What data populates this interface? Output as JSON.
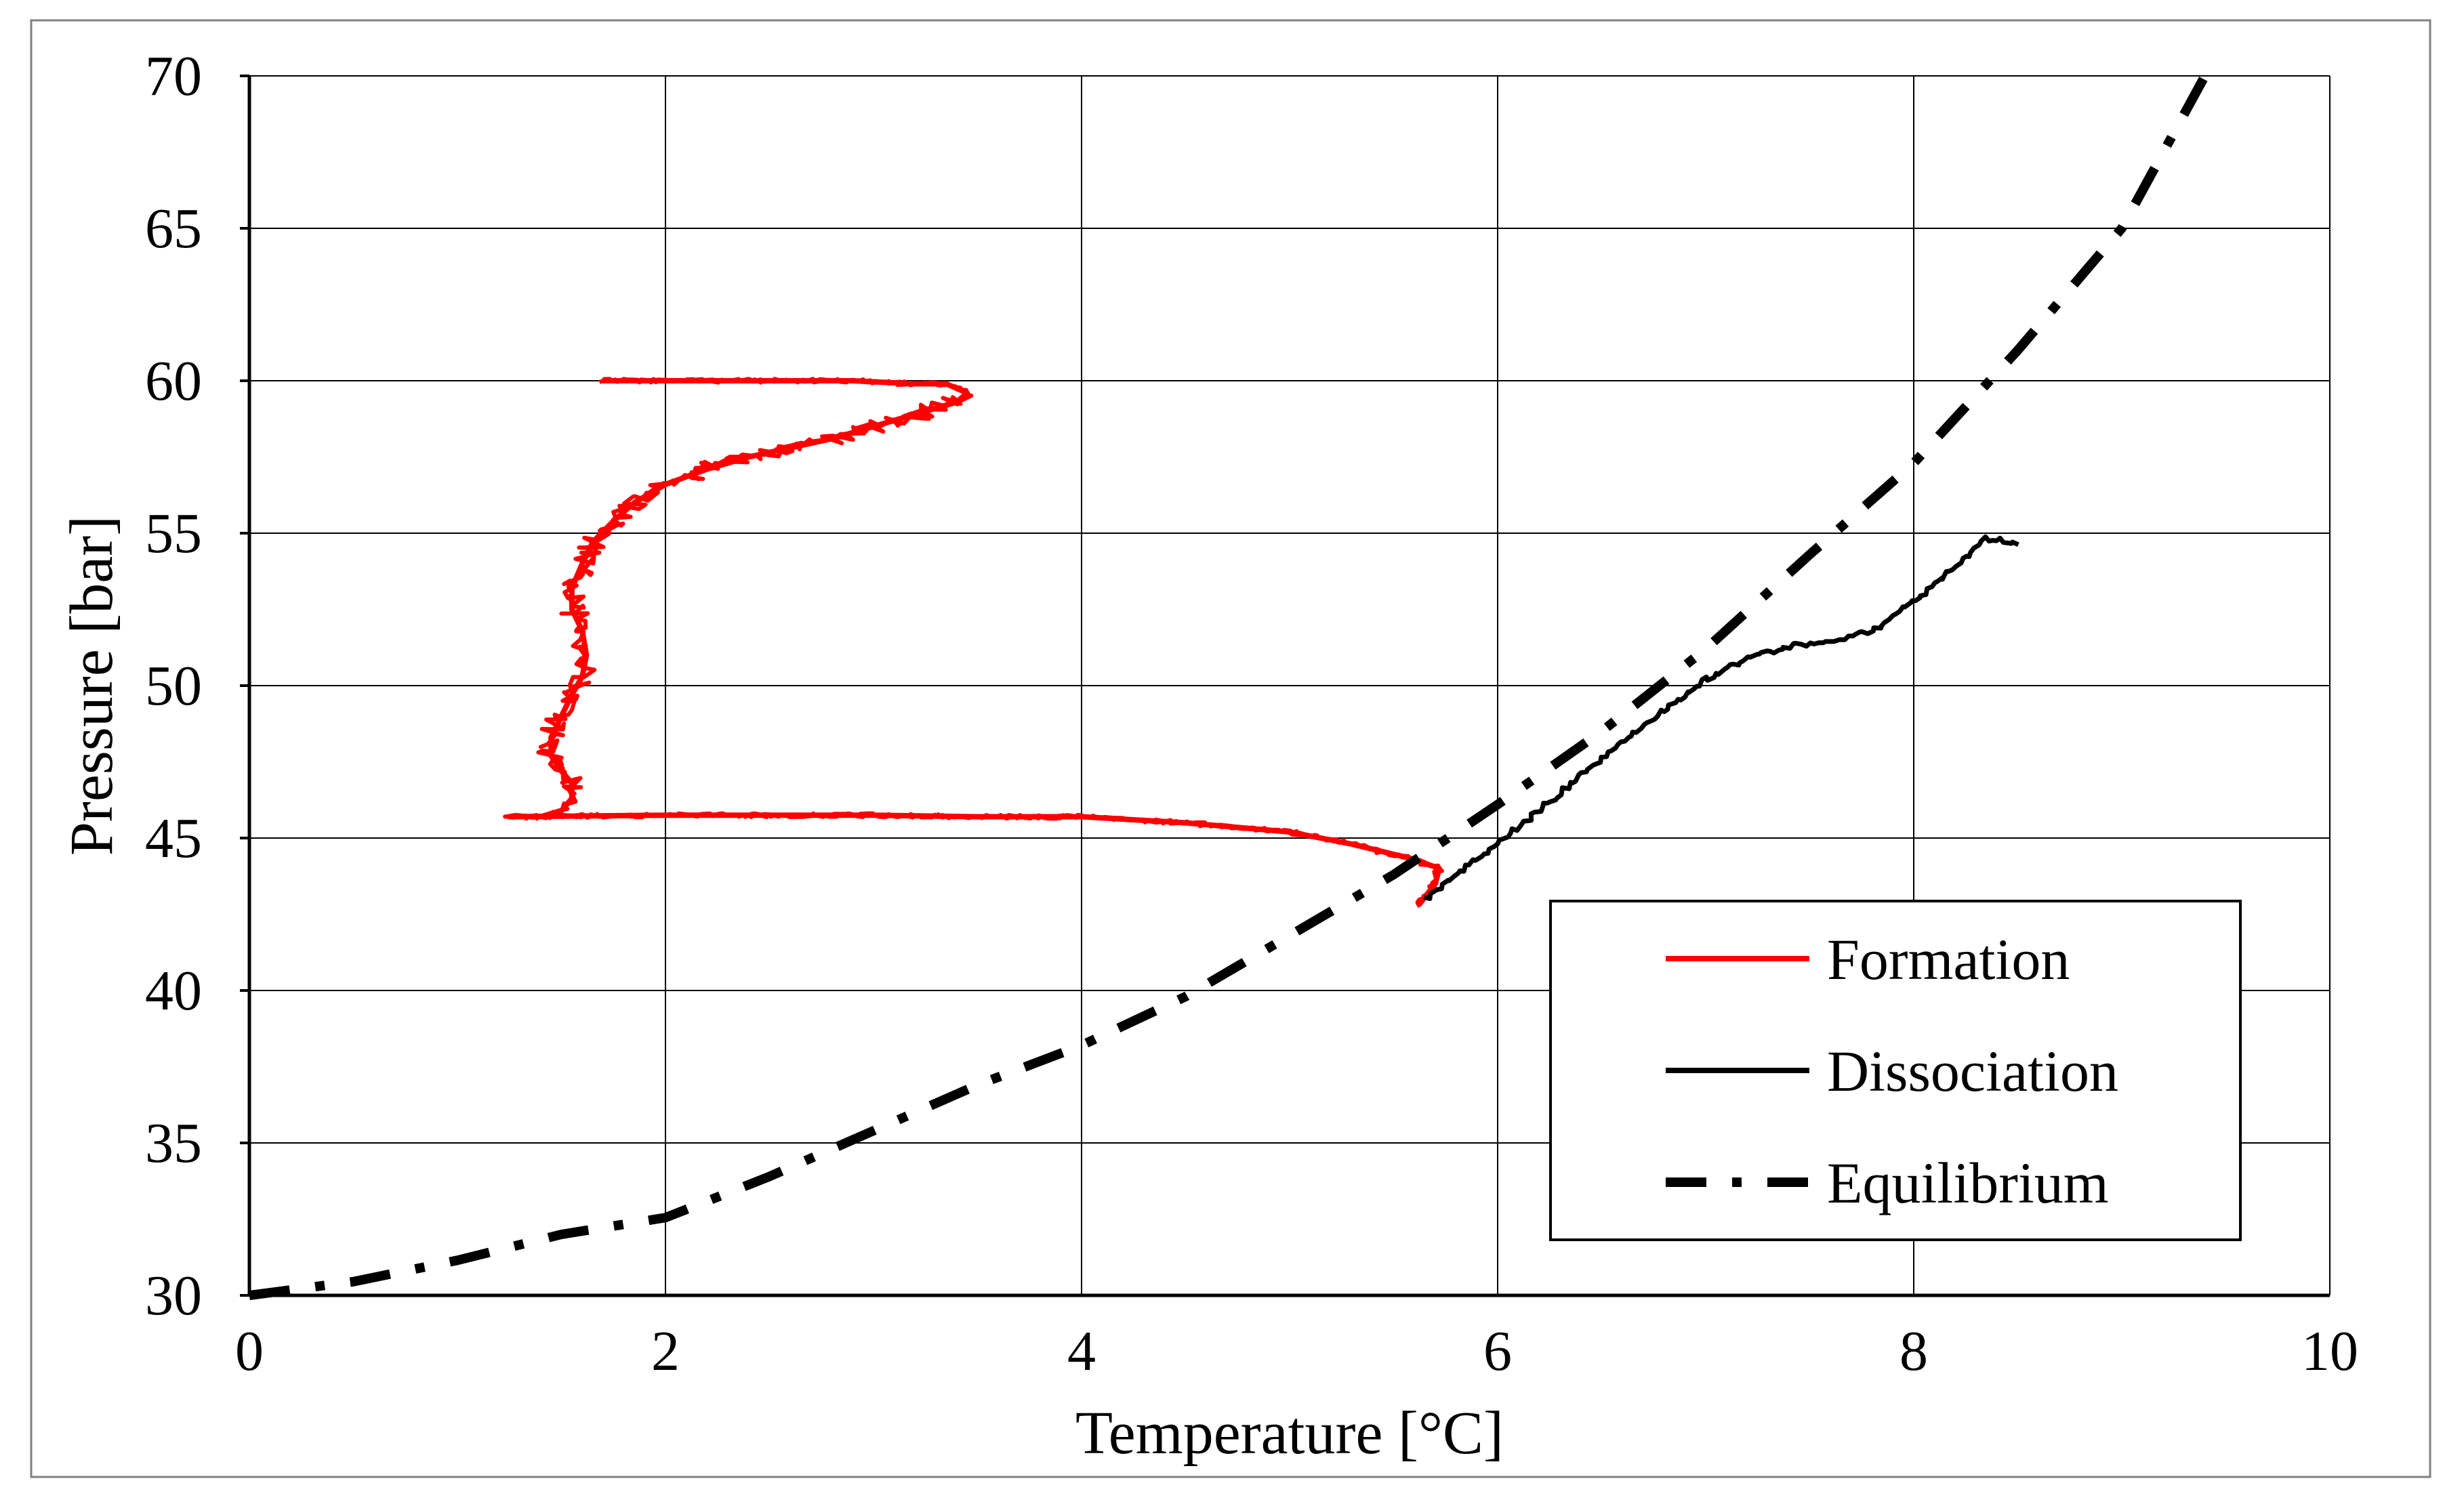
{
  "chart_data": {
    "type": "line",
    "title": "",
    "xlabel": "Temperature [°C]",
    "ylabel": "Pressure [bar]",
    "xlim": [
      0,
      10
    ],
    "ylim": [
      30,
      70
    ],
    "x_ticks": [
      0,
      2,
      4,
      6,
      8,
      10
    ],
    "y_ticks": [
      30,
      35,
      40,
      45,
      50,
      55,
      60,
      65,
      70
    ],
    "grid": true,
    "legend_position": "bottom-right",
    "series": [
      {
        "name": "Formation",
        "color": "#ff0000",
        "style": "solid-thick-noisy",
        "x": [
          1.7,
          2.5,
          2.9,
          3.2,
          3.35,
          3.45,
          3.4,
          3.2,
          3.0,
          2.8,
          2.6,
          2.4,
          2.2,
          2.0,
          1.85,
          1.75,
          1.65,
          1.6,
          1.55,
          1.55,
          1.6,
          1.62,
          1.6,
          1.55,
          1.5,
          1.45,
          1.45,
          1.5,
          1.55,
          1.55,
          1.5,
          1.4,
          1.25,
          2.0,
          3.0,
          3.5,
          4.0,
          4.5,
          5.0,
          5.3,
          5.6,
          5.72,
          5.7,
          5.62
        ],
        "y": [
          60.0,
          60.0,
          60.0,
          59.9,
          59.9,
          59.6,
          59.3,
          58.9,
          58.5,
          58.1,
          57.8,
          57.5,
          57.1,
          56.6,
          56.0,
          55.4,
          54.7,
          54.0,
          53.2,
          52.5,
          51.8,
          51.0,
          50.3,
          49.7,
          49.0,
          48.3,
          47.7,
          47.2,
          46.8,
          46.3,
          45.9,
          45.7,
          45.7,
          45.75,
          45.75,
          45.7,
          45.7,
          45.5,
          45.2,
          44.8,
          44.3,
          44.0,
          43.5,
          42.8
        ]
      },
      {
        "name": "Dissociation",
        "color": "#000000",
        "style": "solid-thin",
        "x": [
          5.65,
          5.9,
          6.2,
          6.5,
          6.8,
          7.0,
          7.2,
          7.4,
          7.6,
          7.8,
          7.95,
          8.1,
          8.25,
          8.33,
          8.42,
          8.5
        ],
        "y": [
          43.0,
          44.3,
          45.9,
          47.6,
          49.2,
          50.2,
          50.9,
          51.3,
          51.5,
          51.8,
          52.5,
          53.3,
          54.2,
          54.8,
          54.8,
          54.7
        ]
      },
      {
        "name": "Equilibrium",
        "color": "#000000",
        "style": "dash-dot",
        "x": [
          0.0,
          0.5,
          1.0,
          1.5,
          2.0,
          2.5,
          3.0,
          3.5,
          4.0,
          4.5,
          5.0,
          5.5,
          6.0,
          6.5,
          7.0,
          7.5,
          8.0,
          8.5,
          9.0,
          9.4
        ],
        "y": [
          30.0,
          30.45,
          31.15,
          32.0,
          32.55,
          33.9,
          35.4,
          36.9,
          38.2,
          39.8,
          41.8,
          43.8,
          46.1,
          48.5,
          51.2,
          54.3,
          57.3,
          61.0,
          65.0,
          70.0
        ]
      }
    ]
  }
}
